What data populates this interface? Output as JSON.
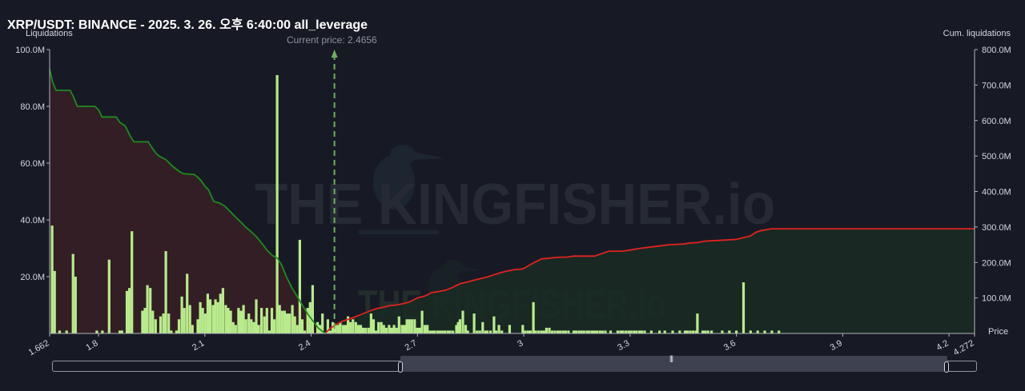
{
  "title": "XRP/USDT: BINANCE - 2025. 3. 26. 오후 6:40:00 all_leverage",
  "left_axis_title": "Liquidations",
  "right_axis_title": "Cum. liquidations",
  "x_axis_title": "Price",
  "current_price_label": "Current price: 2.4656",
  "watermark": "THE KINGFISHER.io",
  "colors": {
    "background": "#171a24",
    "bar": "#b9eb8c",
    "short_cum_line": "#1f8a1f",
    "long_cum_line": "#e0231f",
    "short_fill": "#351f26",
    "long_fill": "#1a2a24",
    "current_price_line": "#6fae5f"
  },
  "chart_data": {
    "type": "bar",
    "xlim": [
      1.662,
      4.272
    ],
    "ylim_left": [
      0,
      100
    ],
    "ylim_right": [
      0,
      800
    ],
    "current_price": 2.4656,
    "y_left_ticks": [
      "100.0M",
      "80.0M",
      "60.0M",
      "40.0M",
      "20.0M"
    ],
    "y_left_tick_values": [
      100,
      80,
      60,
      40,
      20
    ],
    "y_right_ticks": [
      "800.0M",
      "700.0M",
      "600.0M",
      "500.0M",
      "400.0M",
      "300.0M",
      "200.0M",
      "100.0M"
    ],
    "y_right_tick_values": [
      800,
      700,
      600,
      500,
      400,
      300,
      200,
      100
    ],
    "x_ticks": [
      "1.662",
      "1.8",
      "2.1",
      "2.4",
      "2.7",
      "3",
      "3.3",
      "3.6",
      "3.9",
      "4.2",
      "4.272"
    ],
    "x_tick_values": [
      1.662,
      1.8,
      2.1,
      2.4,
      2.7,
      3.0,
      3.3,
      3.6,
      3.9,
      4.2,
      4.272
    ],
    "bars": [
      [
        1.669,
        38
      ],
      [
        1.676,
        22
      ],
      [
        1.69,
        1
      ],
      [
        1.71,
        1
      ],
      [
        1.728,
        28
      ],
      [
        1.735,
        20
      ],
      [
        1.795,
        1
      ],
      [
        1.811,
        1
      ],
      [
        1.83,
        26
      ],
      [
        1.86,
        1
      ],
      [
        1.866,
        1
      ],
      [
        1.88,
        15
      ],
      [
        1.887,
        16
      ],
      [
        1.894,
        36
      ],
      [
        1.924,
        8
      ],
      [
        1.931,
        9
      ],
      [
        1.938,
        17
      ],
      [
        1.946,
        16
      ],
      [
        1.953,
        8
      ],
      [
        1.961,
        5
      ],
      [
        1.975,
        6
      ],
      [
        1.983,
        7
      ],
      [
        1.99,
        29
      ],
      [
        1.998,
        7
      ],
      [
        2.005,
        1
      ],
      [
        2.02,
        1
      ],
      [
        2.027,
        5
      ],
      [
        2.035,
        13
      ],
      [
        2.042,
        9
      ],
      [
        2.05,
        21
      ],
      [
        2.058,
        10
      ],
      [
        2.065,
        3
      ],
      [
        2.08,
        5
      ],
      [
        2.087,
        11
      ],
      [
        2.094,
        9
      ],
      [
        2.101,
        7
      ],
      [
        2.108,
        14
      ],
      [
        2.115,
        12
      ],
      [
        2.123,
        10
      ],
      [
        2.13,
        12
      ],
      [
        2.137,
        11
      ],
      [
        2.144,
        14
      ],
      [
        2.151,
        16
      ],
      [
        2.159,
        10
      ],
      [
        2.166,
        9
      ],
      [
        2.173,
        8
      ],
      [
        2.18,
        4
      ],
      [
        2.187,
        3
      ],
      [
        2.195,
        9
      ],
      [
        2.202,
        8
      ],
      [
        2.209,
        10
      ],
      [
        2.216,
        5
      ],
      [
        2.224,
        7
      ],
      [
        2.231,
        5
      ],
      [
        2.238,
        4
      ],
      [
        2.245,
        12
      ],
      [
        2.252,
        3
      ],
      [
        2.26,
        9
      ],
      [
        2.268,
        6
      ],
      [
        2.275,
        9
      ],
      [
        2.282,
        1
      ],
      [
        2.289,
        9
      ],
      [
        2.296,
        5
      ],
      [
        2.304,
        91
      ],
      [
        2.311,
        10
      ],
      [
        2.318,
        8
      ],
      [
        2.325,
        8
      ],
      [
        2.332,
        7
      ],
      [
        2.339,
        7
      ],
      [
        2.347,
        10
      ],
      [
        2.354,
        6
      ],
      [
        2.361,
        3
      ],
      [
        2.368,
        33
      ],
      [
        2.375,
        5
      ],
      [
        2.382,
        1
      ],
      [
        2.39,
        9
      ],
      [
        2.397,
        11
      ],
      [
        2.404,
        17
      ],
      [
        2.418,
        4
      ],
      [
        2.425,
        3
      ],
      [
        2.432,
        7
      ],
      [
        2.447,
        5
      ],
      [
        2.454,
        1
      ],
      [
        2.461,
        4
      ],
      [
        2.468,
        3
      ],
      [
        2.475,
        3
      ],
      [
        2.482,
        4
      ],
      [
        2.49,
        3
      ],
      [
        2.497,
        3
      ],
      [
        2.504,
        6
      ],
      [
        2.511,
        4
      ],
      [
        2.518,
        5
      ],
      [
        2.526,
        4
      ],
      [
        2.533,
        3
      ],
      [
        2.54,
        3
      ],
      [
        2.547,
        2
      ],
      [
        2.554,
        2
      ],
      [
        2.562,
        2
      ],
      [
        2.569,
        7
      ],
      [
        2.576,
        5
      ],
      [
        2.583,
        1
      ],
      [
        2.59,
        4
      ],
      [
        2.598,
        4
      ],
      [
        2.605,
        3
      ],
      [
        2.612,
        2
      ],
      [
        2.62,
        3
      ],
      [
        2.627,
        2
      ],
      [
        2.634,
        3
      ],
      [
        2.641,
        2
      ],
      [
        2.648,
        6
      ],
      [
        2.656,
        3
      ],
      [
        2.663,
        3
      ],
      [
        2.67,
        5
      ],
      [
        2.677,
        5
      ],
      [
        2.684,
        5
      ],
      [
        2.692,
        5
      ],
      [
        2.699,
        2
      ],
      [
        2.706,
        2
      ],
      [
        2.713,
        8
      ],
      [
        2.721,
        3
      ],
      [
        2.728,
        3
      ],
      [
        2.735,
        1
      ],
      [
        2.742,
        1
      ],
      [
        2.749,
        1
      ],
      [
        2.757,
        1
      ],
      [
        2.764,
        1
      ],
      [
        2.771,
        1
      ],
      [
        2.778,
        1
      ],
      [
        2.786,
        1
      ],
      [
        2.792,
        1
      ],
      [
        2.8,
        1
      ],
      [
        2.81,
        3
      ],
      [
        2.815,
        4
      ],
      [
        2.82,
        5
      ],
      [
        2.828,
        8
      ],
      [
        2.836,
        3
      ],
      [
        2.842,
        1
      ],
      [
        2.86,
        7
      ],
      [
        2.868,
        1
      ],
      [
        2.876,
        1
      ],
      [
        2.884,
        4
      ],
      [
        2.892,
        1
      ],
      [
        2.897,
        1
      ],
      [
        2.906,
        1
      ],
      [
        2.916,
        6
      ],
      [
        2.922,
        1
      ],
      [
        2.93,
        3
      ],
      [
        2.938,
        1
      ],
      [
        2.96,
        3
      ],
      [
        2.997,
        3
      ],
      [
        3.004,
        1
      ],
      [
        3.012,
        1
      ],
      [
        3.019,
        1
      ],
      [
        3.027,
        11
      ],
      [
        3.034,
        1
      ],
      [
        3.042,
        1
      ],
      [
        3.05,
        1
      ],
      [
        3.057,
        1
      ],
      [
        3.064,
        2
      ],
      [
        3.072,
        2
      ],
      [
        3.08,
        1
      ],
      [
        3.088,
        1
      ],
      [
        3.096,
        1
      ],
      [
        3.103,
        1
      ],
      [
        3.111,
        1
      ],
      [
        3.118,
        1
      ],
      [
        3.126,
        1
      ],
      [
        3.141,
        1
      ],
      [
        3.148,
        1
      ],
      [
        3.156,
        1
      ],
      [
        3.163,
        1
      ],
      [
        3.17,
        1
      ],
      [
        3.178,
        1
      ],
      [
        3.185,
        1
      ],
      [
        3.193,
        1
      ],
      [
        3.2,
        1
      ],
      [
        3.207,
        1
      ],
      [
        3.215,
        1
      ],
      [
        3.222,
        1
      ],
      [
        3.23,
        1
      ],
      [
        3.245,
        1
      ],
      [
        3.265,
        1
      ],
      [
        3.273,
        1
      ],
      [
        3.28,
        1
      ],
      [
        3.288,
        1
      ],
      [
        3.296,
        1
      ],
      [
        3.303,
        1
      ],
      [
        3.311,
        1
      ],
      [
        3.318,
        1
      ],
      [
        3.326,
        1
      ],
      [
        3.333,
        1
      ],
      [
        3.341,
        1
      ],
      [
        3.36,
        1
      ],
      [
        3.383,
        1
      ],
      [
        3.398,
        1
      ],
      [
        3.42,
        1
      ],
      [
        3.44,
        1
      ],
      [
        3.455,
        1
      ],
      [
        3.462,
        1
      ],
      [
        3.47,
        1
      ],
      [
        3.478,
        1
      ],
      [
        3.486,
        1
      ],
      [
        3.49,
        7
      ],
      [
        3.505,
        1
      ],
      [
        3.512,
        1
      ],
      [
        3.52,
        1
      ],
      [
        3.53,
        1
      ],
      [
        3.56,
        1
      ],
      [
        3.58,
        1
      ],
      [
        3.6,
        1
      ],
      [
        3.62,
        18
      ],
      [
        3.64,
        1
      ],
      [
        3.66,
        1
      ],
      [
        3.68,
        1
      ],
      [
        3.7,
        1
      ],
      [
        3.72,
        1
      ]
    ],
    "short_cumulative": [
      [
        1.662,
        745
      ],
      [
        1.67,
        710
      ],
      [
        1.68,
        685
      ],
      [
        1.72,
        685
      ],
      [
        1.73,
        665
      ],
      [
        1.74,
        640
      ],
      [
        1.79,
        640
      ],
      [
        1.8,
        630
      ],
      [
        1.81,
        610
      ],
      [
        1.85,
        610
      ],
      [
        1.86,
        595
      ],
      [
        1.875,
        585
      ],
      [
        1.88,
        575
      ],
      [
        1.89,
        555
      ],
      [
        1.9,
        540
      ],
      [
        1.94,
        540
      ],
      [
        1.95,
        525
      ],
      [
        1.96,
        510
      ],
      [
        1.97,
        500
      ],
      [
        1.98,
        495
      ],
      [
        1.99,
        490
      ],
      [
        2.0,
        480
      ],
      [
        2.01,
        470
      ],
      [
        2.03,
        455
      ],
      [
        2.04,
        450
      ],
      [
        2.07,
        448
      ],
      [
        2.08,
        440
      ],
      [
        2.09,
        430
      ],
      [
        2.1,
        415
      ],
      [
        2.11,
        405
      ],
      [
        2.125,
        372
      ],
      [
        2.14,
        368
      ],
      [
        2.155,
        360
      ],
      [
        2.17,
        345
      ],
      [
        2.185,
        330
      ],
      [
        2.2,
        315
      ],
      [
        2.215,
        300
      ],
      [
        2.23,
        287
      ],
      [
        2.245,
        273
      ],
      [
        2.26,
        255
      ],
      [
        2.275,
        235
      ],
      [
        2.29,
        220
      ],
      [
        2.305,
        212
      ],
      [
        2.318,
        190
      ],
      [
        2.33,
        160
      ],
      [
        2.345,
        130
      ],
      [
        2.36,
        105
      ],
      [
        2.375,
        80
      ],
      [
        2.39,
        55
      ],
      [
        2.405,
        35
      ],
      [
        2.42,
        15
      ],
      [
        2.433,
        5
      ],
      [
        2.44,
        1
      ]
    ],
    "long_cumulative": [
      [
        2.441,
        2
      ],
      [
        2.455,
        15
      ],
      [
        2.47,
        25
      ],
      [
        2.49,
        35
      ],
      [
        2.52,
        45
      ],
      [
        2.545,
        55
      ],
      [
        2.57,
        65
      ],
      [
        2.585,
        70
      ],
      [
        2.61,
        75
      ],
      [
        2.62,
        78
      ],
      [
        2.64,
        80
      ],
      [
        2.665,
        85
      ],
      [
        2.68,
        90
      ],
      [
        2.7,
        100
      ],
      [
        2.72,
        105
      ],
      [
        2.73,
        110
      ],
      [
        2.74,
        115
      ],
      [
        2.76,
        118
      ],
      [
        2.78,
        122
      ],
      [
        2.8,
        130
      ],
      [
        2.81,
        135
      ],
      [
        2.82,
        140
      ],
      [
        2.84,
        145
      ],
      [
        2.86,
        150
      ],
      [
        2.88,
        155
      ],
      [
        2.9,
        160
      ],
      [
        2.915,
        165
      ],
      [
        2.93,
        170
      ],
      [
        2.95,
        175
      ],
      [
        2.975,
        180
      ],
      [
        2.99,
        181
      ],
      [
        3.0,
        183
      ],
      [
        3.02,
        195
      ],
      [
        3.05,
        210
      ],
      [
        3.1,
        215
      ],
      [
        3.12,
        215
      ],
      [
        3.14,
        218
      ],
      [
        3.2,
        218
      ],
      [
        3.22,
        225
      ],
      [
        3.24,
        232
      ],
      [
        3.28,
        232
      ],
      [
        3.3,
        235
      ],
      [
        3.33,
        240
      ],
      [
        3.37,
        245
      ],
      [
        3.41,
        250
      ],
      [
        3.45,
        252
      ],
      [
        3.47,
        255
      ],
      [
        3.49,
        256
      ],
      [
        3.51,
        260
      ],
      [
        3.55,
        262
      ],
      [
        3.6,
        265
      ],
      [
        3.64,
        275
      ],
      [
        3.655,
        285
      ],
      [
        3.67,
        290
      ],
      [
        3.7,
        295
      ],
      [
        4.272,
        295
      ]
    ]
  }
}
